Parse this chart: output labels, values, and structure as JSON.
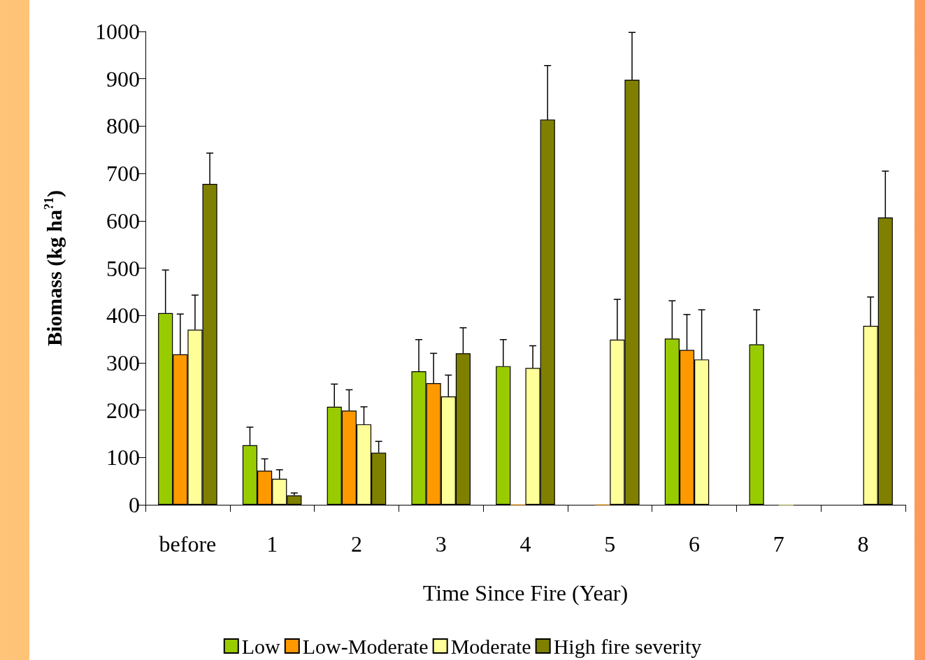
{
  "chart_data": {
    "type": "bar",
    "xlabel": "Time Since Fire (Year)",
    "ylabel": "Biomass (kg ha$^{?1}$)",
    "categories": [
      "before",
      "1",
      "2",
      "3",
      "4",
      "5",
      "6",
      "7",
      "8"
    ],
    "series": [
      {
        "name": "Low",
        "color": "#99cc00",
        "values": [
          405,
          126,
          207,
          282,
          293,
          null,
          351,
          339,
          null
        ],
        "errors": [
          [
            405,
            496
          ],
          [
            126,
            164
          ],
          [
            207,
            255
          ],
          [
            282,
            349
          ],
          [
            293,
            349
          ],
          null,
          [
            351,
            431
          ],
          [
            339,
            412
          ],
          null
        ]
      },
      {
        "name": "Low-Moderate",
        "color": "#ff9900",
        "values": [
          318,
          72,
          199,
          257,
          0,
          0,
          327,
          null,
          null
        ],
        "errors": [
          [
            318,
            403
          ],
          [
            72,
            97
          ],
          [
            199,
            243
          ],
          [
            257,
            320
          ],
          null,
          null,
          [
            327,
            402
          ],
          null,
          null
        ]
      },
      {
        "name": "Moderate",
        "color": "#ffff99",
        "values": [
          370,
          55,
          170,
          229,
          289,
          349,
          307,
          0,
          378
        ],
        "errors": [
          [
            370,
            443
          ],
          [
            55,
            74
          ],
          [
            170,
            207
          ],
          [
            229,
            274
          ],
          [
            289,
            336
          ],
          [
            349,
            434
          ],
          [
            307,
            412
          ],
          null,
          [
            378,
            439
          ]
        ]
      },
      {
        "name": "High fire severity",
        "color": "#808000",
        "values": [
          678,
          20,
          110,
          320,
          814,
          898,
          null,
          null,
          607
        ],
        "errors": [
          [
            678,
            743
          ],
          [
            20,
            25
          ],
          [
            110,
            134
          ],
          [
            320,
            374
          ],
          [
            814,
            928
          ],
          [
            898,
            998
          ],
          null,
          null,
          [
            607,
            705
          ]
        ]
      }
    ],
    "ylim": [
      0,
      1000
    ],
    "yticks": [
      0,
      100,
      200,
      300,
      400,
      500,
      600,
      700,
      800,
      900,
      1000
    ],
    "grid": false,
    "legend": "bottom"
  }
}
